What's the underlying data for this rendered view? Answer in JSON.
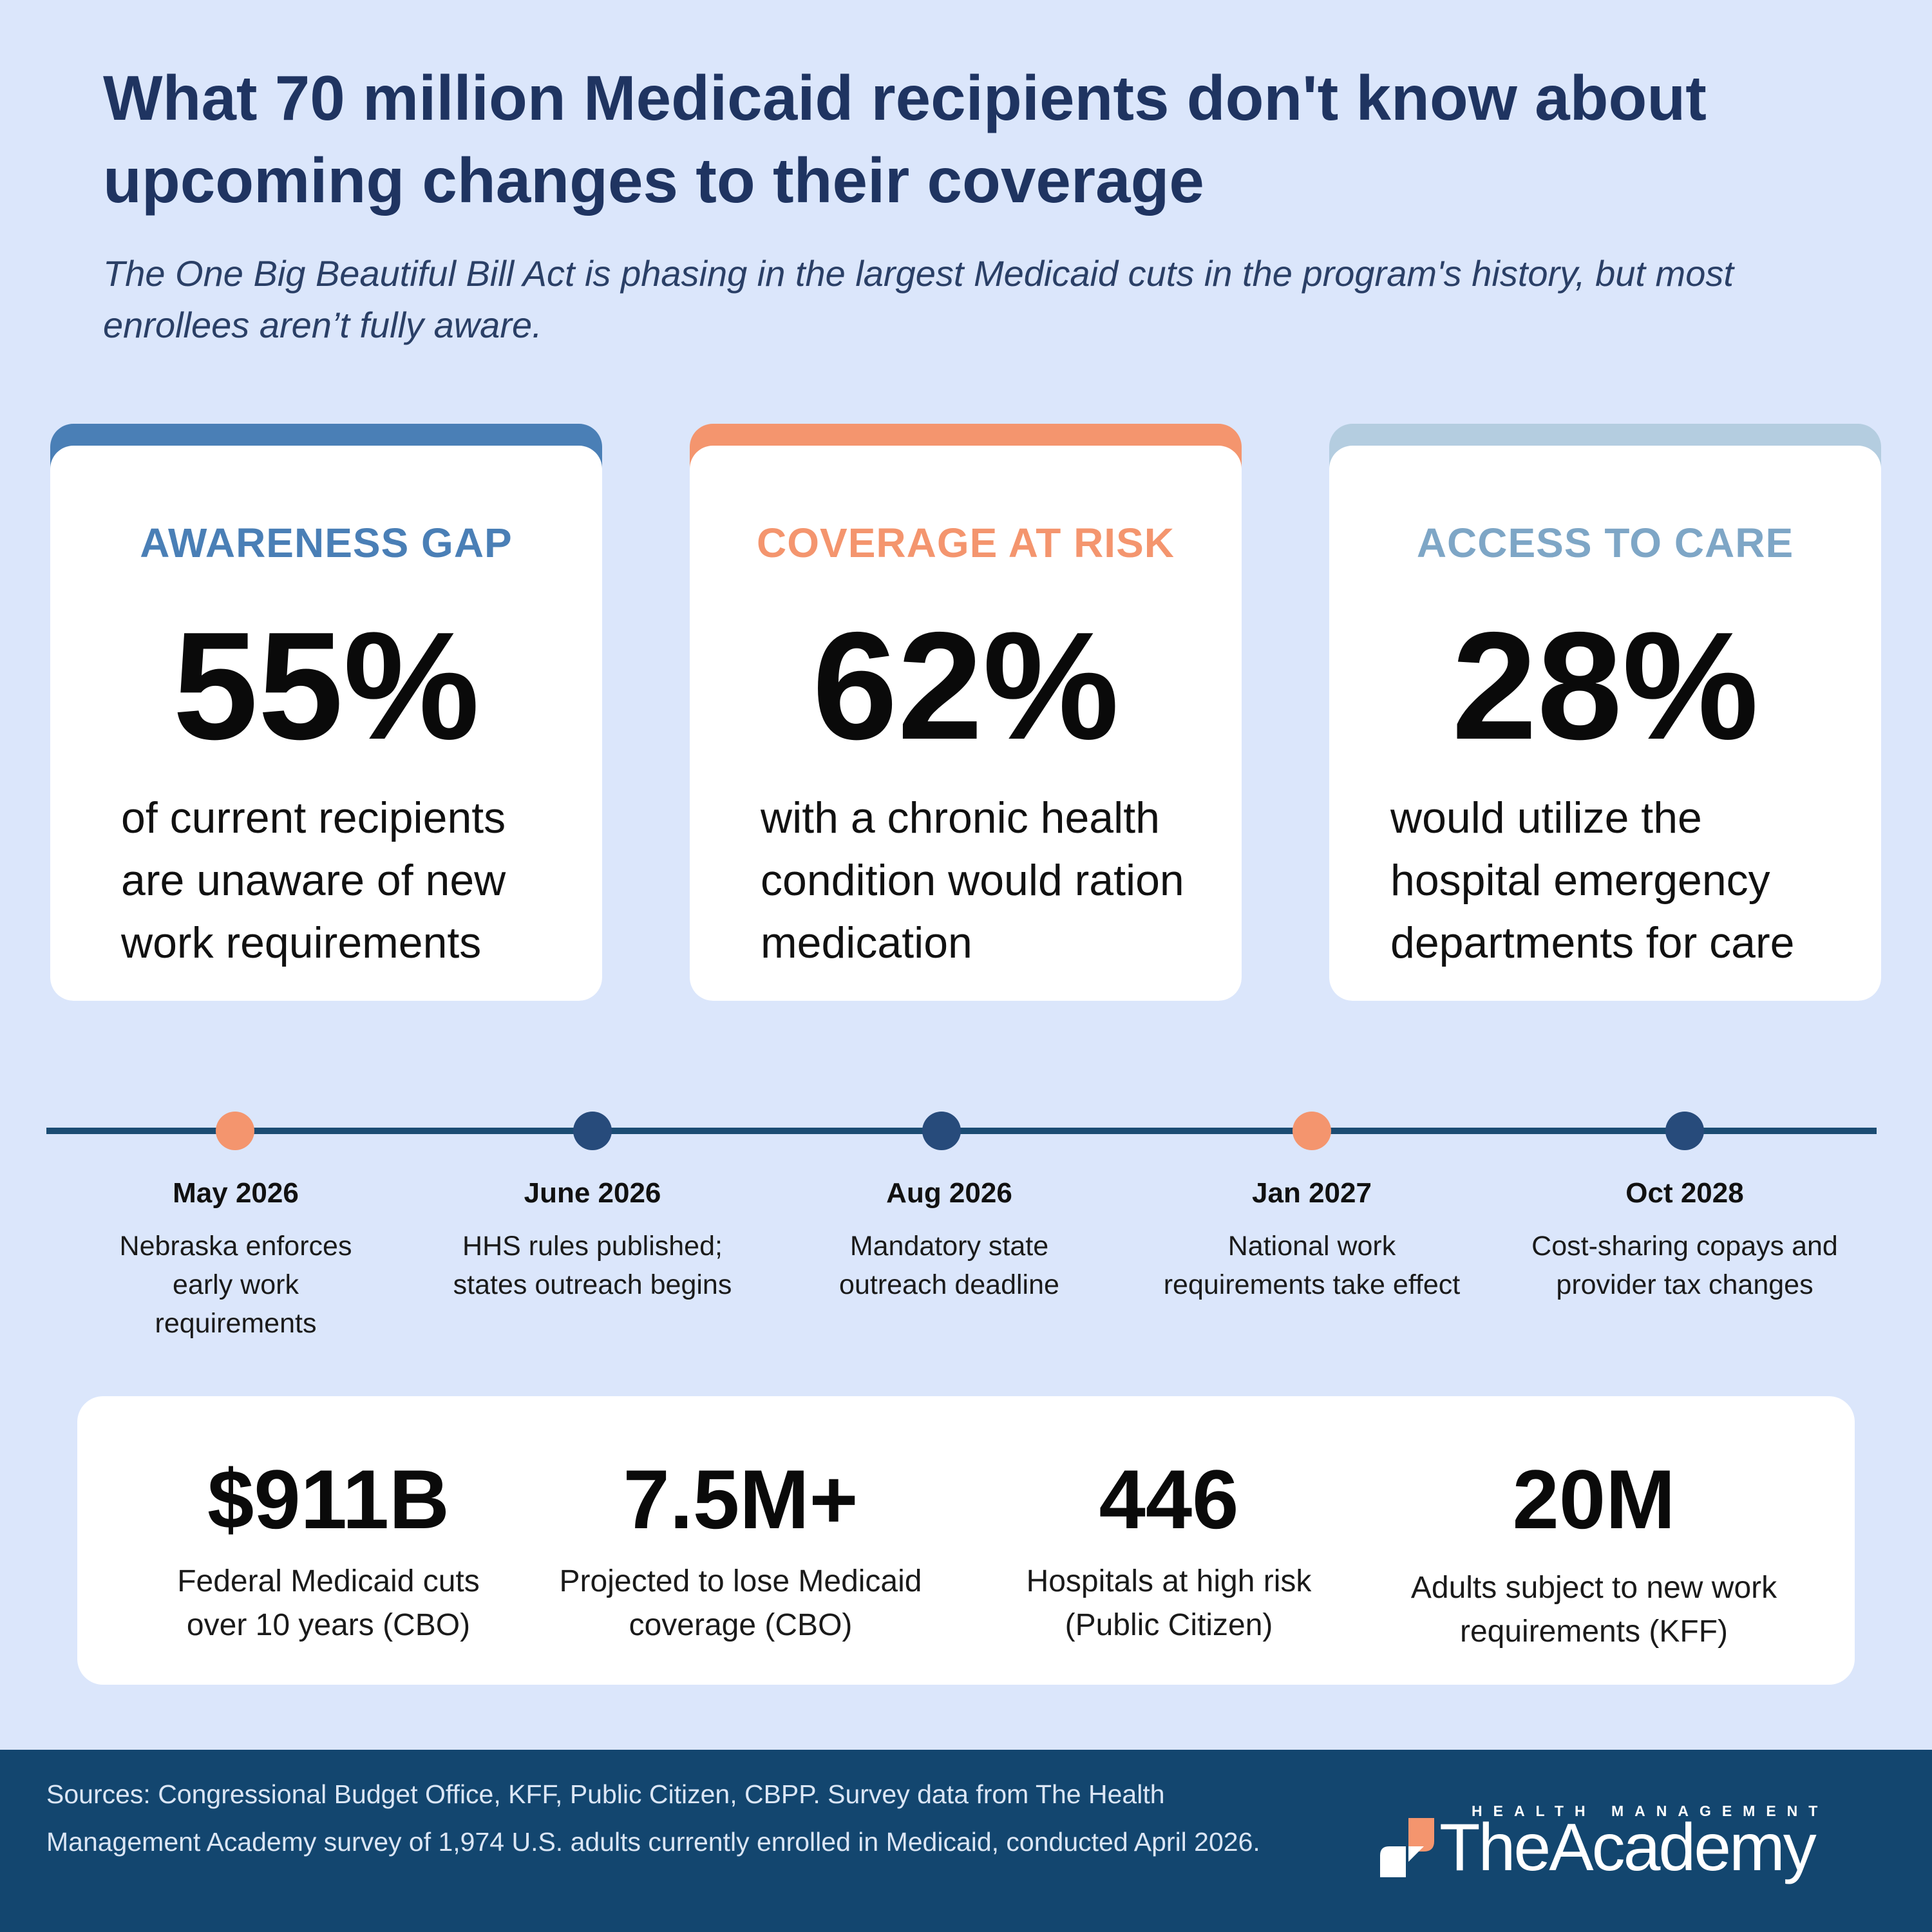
{
  "header": {
    "title": "What 70 million Medicaid recipients don't know about upcoming changes to their coverage",
    "subtitle": "The One Big Beautiful Bill Act is phasing in the largest Medicaid cuts in the program's history, but most enrollees aren’t fully aware."
  },
  "colors": {
    "blue": "#4a7fb6",
    "orange": "#f4956e",
    "light_blue": "#b4cde0",
    "navy": "#1b4c73",
    "dot_navy": "#274b7b"
  },
  "cards": [
    {
      "label": "AWARENESS GAP",
      "value": "55%",
      "description": "of current recipients are unaware of new work requirements"
    },
    {
      "label": "COVERAGE AT RISK",
      "value": "62%",
      "description": "with a chronic health condition would ration medication"
    },
    {
      "label": "ACCESS TO CARE",
      "value": "28%",
      "description": "would utilize the hospital emergency departments for care"
    }
  ],
  "timeline": [
    {
      "date": "May 2026",
      "text": "Nebraska enforces early work requirements",
      "dot_color": "orange"
    },
    {
      "date": "June 2026",
      "text": "HHS rules published; states outreach begins",
      "dot_color": "navy"
    },
    {
      "date": "Aug 2026",
      "text": "Mandatory state outreach deadline",
      "dot_color": "navy"
    },
    {
      "date": "Jan 2027",
      "text": "National work requirements take effect",
      "dot_color": "orange"
    },
    {
      "date": "Oct 2028",
      "text": "Cost-sharing copays and provider tax changes",
      "dot_color": "navy"
    }
  ],
  "stats": [
    {
      "value": "$911B",
      "label": "Federal Medicaid cuts over 10 years (CBO)"
    },
    {
      "value": "7.5M+",
      "label": "Projected to lose Medicaid coverage (CBO)"
    },
    {
      "value": "446",
      "label": "Hospitals at high risk (Public Citizen)"
    },
    {
      "value": "20M",
      "label": "Adults subject to new work requirements (KFF)"
    }
  ],
  "footer": {
    "sources": "Sources: Congressional Budget Office, KFF, Public Citizen, CBPP. Survey data from The Health Management Academy survey of 1,974 U.S. adults currently enrolled in Medicaid, conducted April 2026.",
    "logo_top": "HEALTH MANAGEMENT",
    "logo_main": "TheAcademy"
  }
}
